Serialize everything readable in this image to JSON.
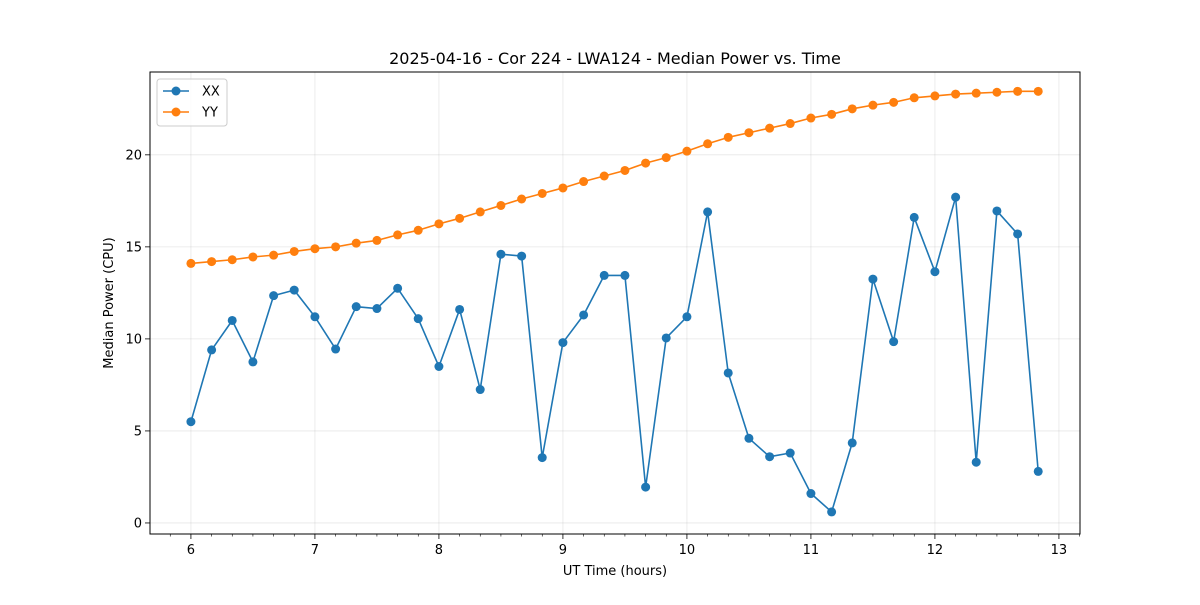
{
  "chart_data": {
    "type": "line",
    "title": "2025-04-16 - Cor 224 - LWA124 - Median Power vs. Time",
    "xlabel": "UT Time (hours)",
    "ylabel": "Median Power (CPU)",
    "xlim": [
      5.67,
      13.17
    ],
    "ylim": [
      -0.6,
      24.5
    ],
    "xticks": [
      6,
      7,
      8,
      9,
      10,
      11,
      12,
      13
    ],
    "yticks": [
      0,
      5,
      10,
      15,
      20
    ],
    "grid": true,
    "legend_position": "top-left",
    "x": [
      6.0,
      6.167,
      6.333,
      6.5,
      6.667,
      6.833,
      7.0,
      7.167,
      7.333,
      7.5,
      7.667,
      7.833,
      8.0,
      8.167,
      8.333,
      8.5,
      8.667,
      8.833,
      9.0,
      9.167,
      9.333,
      9.5,
      9.667,
      9.833,
      10.0,
      10.167,
      10.333,
      10.5,
      10.667,
      10.833,
      11.0,
      11.167,
      11.333,
      11.5,
      11.667,
      11.833,
      12.0,
      12.167,
      12.333,
      12.5,
      12.667,
      12.833
    ],
    "series": [
      {
        "name": "XX",
        "color": "#1f77b4",
        "values": [
          5.5,
          9.4,
          11.0,
          8.75,
          12.35,
          12.65,
          11.2,
          9.45,
          11.75,
          11.65,
          12.75,
          11.1,
          8.5,
          11.6,
          7.25,
          14.6,
          14.5,
          3.55,
          9.8,
          11.3,
          13.45,
          13.45,
          1.95,
          10.05,
          11.2,
          16.9,
          8.15,
          4.6,
          3.6,
          3.8,
          1.6,
          0.6,
          4.35,
          13.25,
          9.85,
          16.6,
          13.65,
          17.7,
          3.3,
          16.95,
          15.7,
          2.8
        ]
      },
      {
        "name": "YY",
        "color": "#ff7f0e",
        "values": [
          14.1,
          14.2,
          14.3,
          14.45,
          14.55,
          14.75,
          14.9,
          15.0,
          15.2,
          15.35,
          15.65,
          15.9,
          16.25,
          16.55,
          16.9,
          17.25,
          17.6,
          17.9,
          18.2,
          18.55,
          18.85,
          19.15,
          19.55,
          19.85,
          20.2,
          20.6,
          20.95,
          21.2,
          21.45,
          21.7,
          22.0,
          22.2,
          22.5,
          22.7,
          22.85,
          23.1,
          23.2,
          23.3,
          23.35,
          23.4,
          23.45,
          23.45
        ]
      }
    ]
  }
}
